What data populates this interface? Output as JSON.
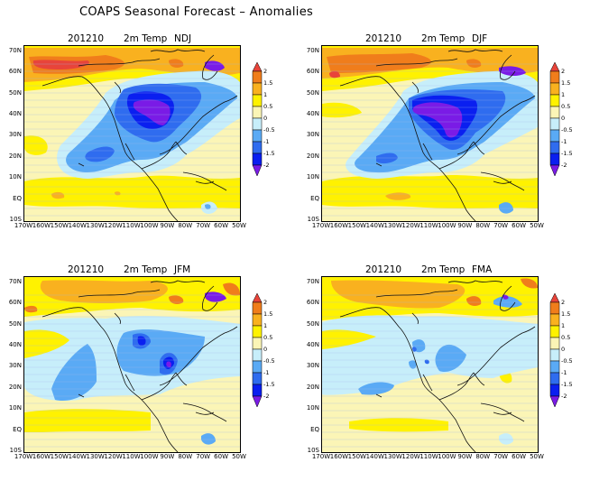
{
  "title": "COAPS Seasonal Forecast – Anomalies",
  "colorbar": {
    "levels": [
      "2",
      "1.5",
      "1",
      "0.5",
      "0",
      "-0.5",
      "-1",
      "-1.5",
      "-2"
    ],
    "colors": [
      "#e8443a",
      "#f07d1b",
      "#f9b11f",
      "#fff200",
      "#fbf5b6",
      "#c7eefa",
      "#5aaaf5",
      "#2f6cef",
      "#0a1ff0",
      "#7a1be6"
    ]
  },
  "axes": {
    "y_ticks": [
      "70N",
      "60N",
      "50N",
      "40N",
      "30N",
      "20N",
      "10N",
      "EQ",
      "10S"
    ],
    "x_ticks": [
      "170W",
      "160W",
      "150W",
      "140W",
      "130W",
      "120W",
      "110W",
      "100W",
      "90W",
      "80W",
      "70W",
      "60W",
      "50W"
    ]
  },
  "panels": [
    {
      "date": "201210",
      "variable": "2m Temp",
      "season": "NDJ"
    },
    {
      "date": "201210",
      "variable": "2m Temp",
      "season": "DJF"
    },
    {
      "date": "201210",
      "variable": "2m Temp",
      "season": "JFM"
    },
    {
      "date": "201210",
      "variable": "2m Temp",
      "season": "FMA"
    }
  ]
}
